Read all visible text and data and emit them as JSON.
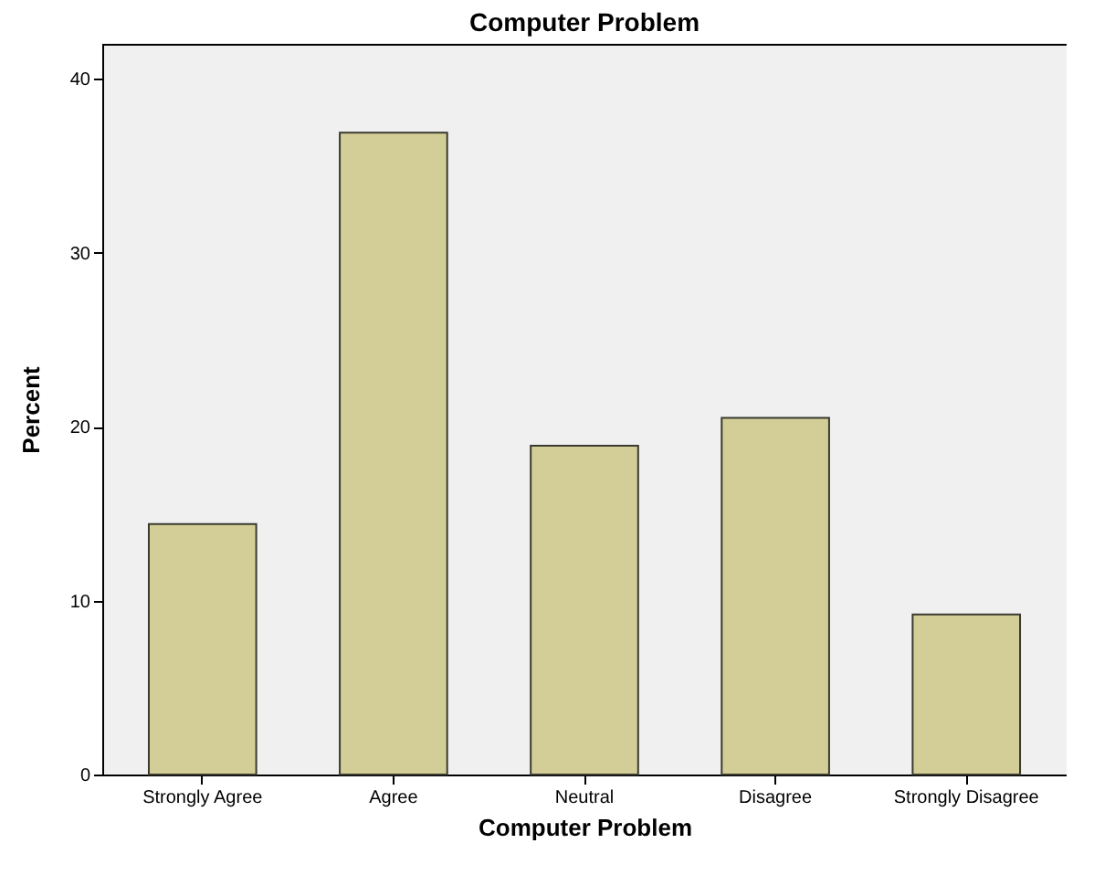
{
  "chart_data": {
    "type": "bar",
    "title": "Computer Problem",
    "xlabel": "Computer Problem",
    "ylabel": "Percent",
    "categories": [
      "Strongly Agree",
      "Agree",
      "Neutral",
      "Disagree",
      "Strongly Disagree"
    ],
    "values": [
      14.4,
      36.9,
      18.9,
      20.5,
      9.2
    ],
    "color": "#d3ce97",
    "ylim": [
      0,
      42
    ],
    "yticks": [
      0,
      10,
      20,
      30,
      40
    ],
    "grid": false
  }
}
